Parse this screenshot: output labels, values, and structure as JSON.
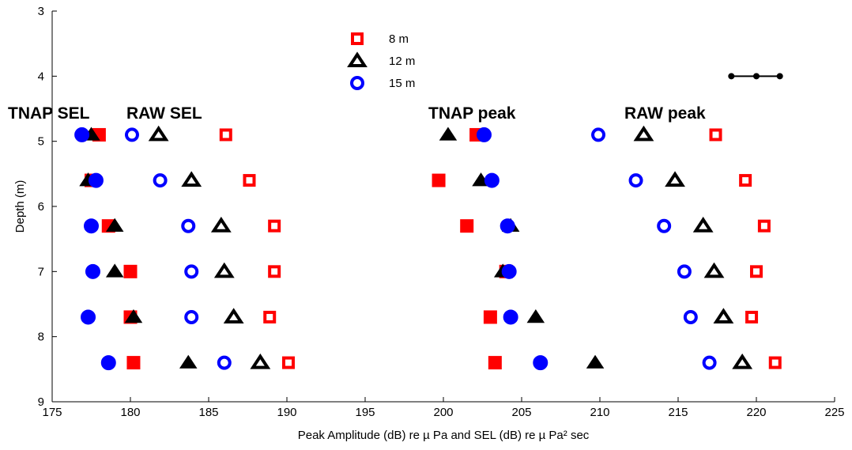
{
  "chart_data": {
    "type": "scatter",
    "xlabel": "Peak Amplitude (dB) re µ Pa  and  SEL (dB) re µ Pa² sec",
    "ylabel": "Depth (m)",
    "xlim": [
      175,
      225
    ],
    "ylim": [
      3,
      9
    ],
    "y_reversed": true,
    "xticks": [
      175,
      180,
      185,
      190,
      195,
      200,
      205,
      210,
      215,
      220,
      225
    ],
    "yticks": [
      3,
      4,
      5,
      6,
      7,
      8,
      9
    ],
    "depths": [
      4.9,
      5.6,
      6.3,
      7.0,
      7.7,
      8.4
    ],
    "legend": [
      {
        "label": "8 m",
        "marker": "square",
        "color": "#ff0000"
      },
      {
        "label": "12 m",
        "marker": "triangle",
        "color": "#000000"
      },
      {
        "label": "15 m",
        "marker": "circle",
        "color": "#0000ff"
      }
    ],
    "annotations": [
      "TNAP SEL",
      "RAW SEL",
      "TNAP peak",
      "RAW peak"
    ],
    "scale_bar": {
      "x_start": 218.4,
      "x_mid": 220.0,
      "x_end": 221.5,
      "y": 4.0
    },
    "series": [
      {
        "name": "8 m",
        "group": "TNAP SEL",
        "marker": "square",
        "fill": "filled",
        "color": "#ff0000",
        "points": [
          [
            178.0,
            4.9
          ],
          [
            177.5,
            5.6
          ],
          [
            178.6,
            6.3
          ],
          [
            180.0,
            7.0
          ],
          [
            180.0,
            7.7
          ],
          [
            180.2,
            8.4
          ]
        ]
      },
      {
        "name": "12 m",
        "group": "TNAP SEL",
        "marker": "triangle",
        "fill": "filled",
        "color": "#000000",
        "points": [
          [
            177.5,
            4.9
          ],
          [
            177.3,
            5.6
          ],
          [
            179.0,
            6.3
          ],
          [
            179.0,
            7.0
          ],
          [
            180.2,
            7.7
          ],
          [
            183.7,
            8.4
          ]
        ]
      },
      {
        "name": "15 m",
        "group": "TNAP SEL",
        "marker": "circle",
        "fill": "filled",
        "color": "#0000ff",
        "points": [
          [
            176.9,
            4.9
          ],
          [
            177.8,
            5.6
          ],
          [
            177.5,
            6.3
          ],
          [
            177.6,
            7.0
          ],
          [
            177.3,
            7.7
          ],
          [
            178.6,
            8.4
          ]
        ]
      },
      {
        "name": "8 m",
        "group": "RAW SEL",
        "marker": "square",
        "fill": "open",
        "color": "#ff0000",
        "points": [
          [
            186.1,
            4.9
          ],
          [
            187.6,
            5.6
          ],
          [
            189.2,
            6.3
          ],
          [
            189.2,
            7.0
          ],
          [
            188.9,
            7.7
          ],
          [
            190.1,
            8.4
          ]
        ]
      },
      {
        "name": "12 m",
        "group": "RAW SEL",
        "marker": "triangle",
        "fill": "open",
        "color": "#000000",
        "points": [
          [
            181.8,
            4.9
          ],
          [
            183.9,
            5.6
          ],
          [
            185.8,
            6.3
          ],
          [
            186.0,
            7.0
          ],
          [
            186.6,
            7.7
          ],
          [
            188.3,
            8.4
          ]
        ]
      },
      {
        "name": "15 m",
        "group": "RAW SEL",
        "marker": "circle",
        "fill": "open",
        "color": "#0000ff",
        "points": [
          [
            180.1,
            4.9
          ],
          [
            181.9,
            5.6
          ],
          [
            183.7,
            6.3
          ],
          [
            183.9,
            7.0
          ],
          [
            183.9,
            7.7
          ],
          [
            186.0,
            8.4
          ]
        ]
      },
      {
        "name": "8 m",
        "group": "TNAP peak",
        "marker": "square",
        "fill": "filled",
        "color": "#ff0000",
        "points": [
          [
            202.1,
            4.9
          ],
          [
            199.7,
            5.6
          ],
          [
            201.5,
            6.3
          ],
          [
            204.0,
            7.0
          ],
          [
            203.0,
            7.7
          ],
          [
            203.3,
            8.4
          ]
        ]
      },
      {
        "name": "12 m",
        "group": "TNAP peak",
        "marker": "triangle",
        "fill": "filled",
        "color": "#000000",
        "points": [
          [
            200.3,
            4.9
          ],
          [
            202.4,
            5.6
          ],
          [
            204.3,
            6.3
          ],
          [
            203.8,
            7.0
          ],
          [
            205.9,
            7.7
          ],
          [
            209.7,
            8.4
          ]
        ]
      },
      {
        "name": "15 m",
        "group": "TNAP peak",
        "marker": "circle",
        "fill": "filled",
        "color": "#0000ff",
        "points": [
          [
            202.6,
            4.9
          ],
          [
            203.1,
            5.6
          ],
          [
            204.1,
            6.3
          ],
          [
            204.2,
            7.0
          ],
          [
            204.3,
            7.7
          ],
          [
            206.2,
            8.4
          ]
        ]
      },
      {
        "name": "8 m",
        "group": "RAW peak",
        "marker": "square",
        "fill": "open",
        "color": "#ff0000",
        "points": [
          [
            217.4,
            4.9
          ],
          [
            219.3,
            5.6
          ],
          [
            220.5,
            6.3
          ],
          [
            220.0,
            7.0
          ],
          [
            219.7,
            7.7
          ],
          [
            221.2,
            8.4
          ]
        ]
      },
      {
        "name": "12 m",
        "group": "RAW peak",
        "marker": "triangle",
        "fill": "open",
        "color": "#000000",
        "points": [
          [
            212.8,
            4.9
          ],
          [
            214.8,
            5.6
          ],
          [
            216.6,
            6.3
          ],
          [
            217.3,
            7.0
          ],
          [
            217.9,
            7.7
          ],
          [
            219.1,
            8.4
          ]
        ]
      },
      {
        "name": "15 m",
        "group": "RAW peak",
        "marker": "circle",
        "fill": "open",
        "color": "#0000ff",
        "points": [
          [
            209.9,
            4.9
          ],
          [
            212.3,
            5.6
          ],
          [
            214.1,
            6.3
          ],
          [
            215.4,
            7.0
          ],
          [
            215.8,
            7.7
          ],
          [
            217.0,
            8.4
          ]
        ]
      }
    ]
  }
}
